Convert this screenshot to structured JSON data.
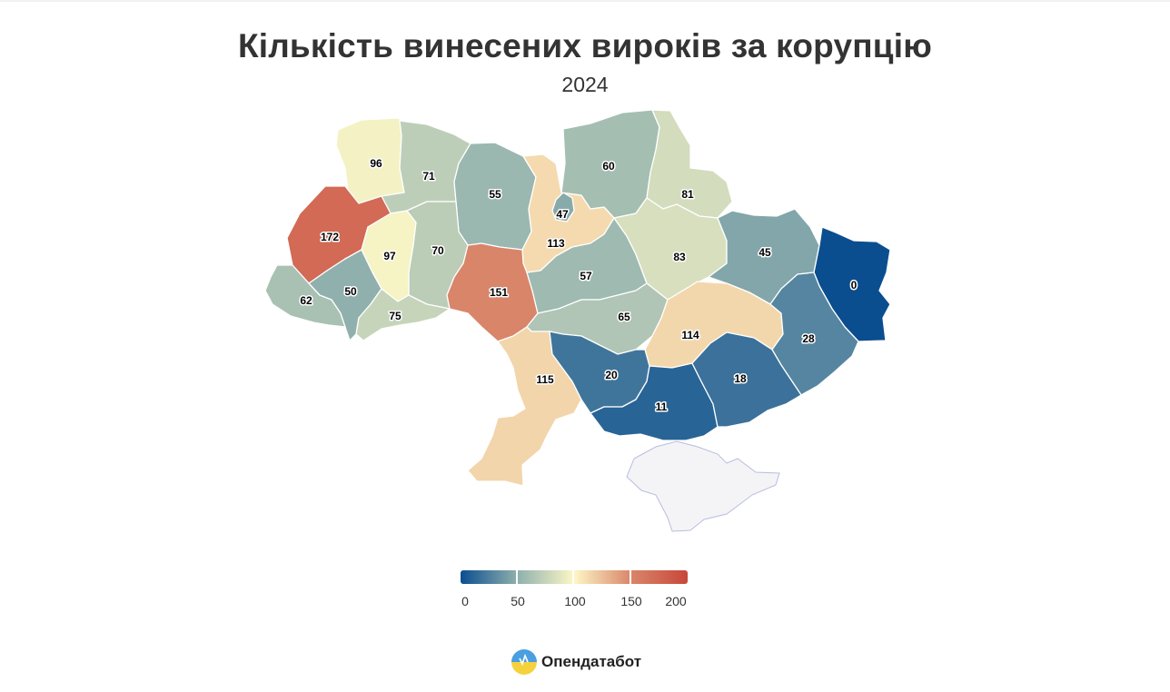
{
  "title": "Кількість винесених вироків за корупцію",
  "subtitle": "2024",
  "colors": {
    "scale": [
      "#0b4e8f",
      "#8fb0ad",
      "#fdf7c6",
      "#d9866a",
      "#c8473a"
    ],
    "crimea": "#f4f4f6"
  },
  "regions": [
    {
      "id": "volyn",
      "value": 96
    },
    {
      "id": "rivne",
      "value": 71
    },
    {
      "id": "zhytomyr",
      "value": 55
    },
    {
      "id": "kyiv-oblast",
      "value": 113
    },
    {
      "id": "kyiv-city",
      "value": 47
    },
    {
      "id": "chernihiv",
      "value": 60
    },
    {
      "id": "sumy",
      "value": 81
    },
    {
      "id": "lviv",
      "value": 172
    },
    {
      "id": "ternopil",
      "value": 97
    },
    {
      "id": "khmelnytskyi",
      "value": 70
    },
    {
      "id": "vinnytsia",
      "value": 151
    },
    {
      "id": "cherkasy",
      "value": 57
    },
    {
      "id": "poltava",
      "value": 83
    },
    {
      "id": "kharkiv",
      "value": 45
    },
    {
      "id": "luhansk",
      "value": 0
    },
    {
      "id": "zakarpattia",
      "value": 62
    },
    {
      "id": "ivano-frankivsk",
      "value": 50
    },
    {
      "id": "chernivtsi",
      "value": 75
    },
    {
      "id": "kirovohrad",
      "value": 65
    },
    {
      "id": "dnipropetrovsk",
      "value": 114
    },
    {
      "id": "donetsk",
      "value": 28
    },
    {
      "id": "odesa",
      "value": 115
    },
    {
      "id": "mykolaiv",
      "value": 20
    },
    {
      "id": "kherson",
      "value": 11
    },
    {
      "id": "zaporizhzhia",
      "value": 18
    }
  ],
  "legend": {
    "min": 0,
    "max": 200,
    "labels": [
      "0",
      "50",
      "100",
      "150",
      "200"
    ]
  },
  "brand": {
    "name": "Опендатабот"
  }
}
